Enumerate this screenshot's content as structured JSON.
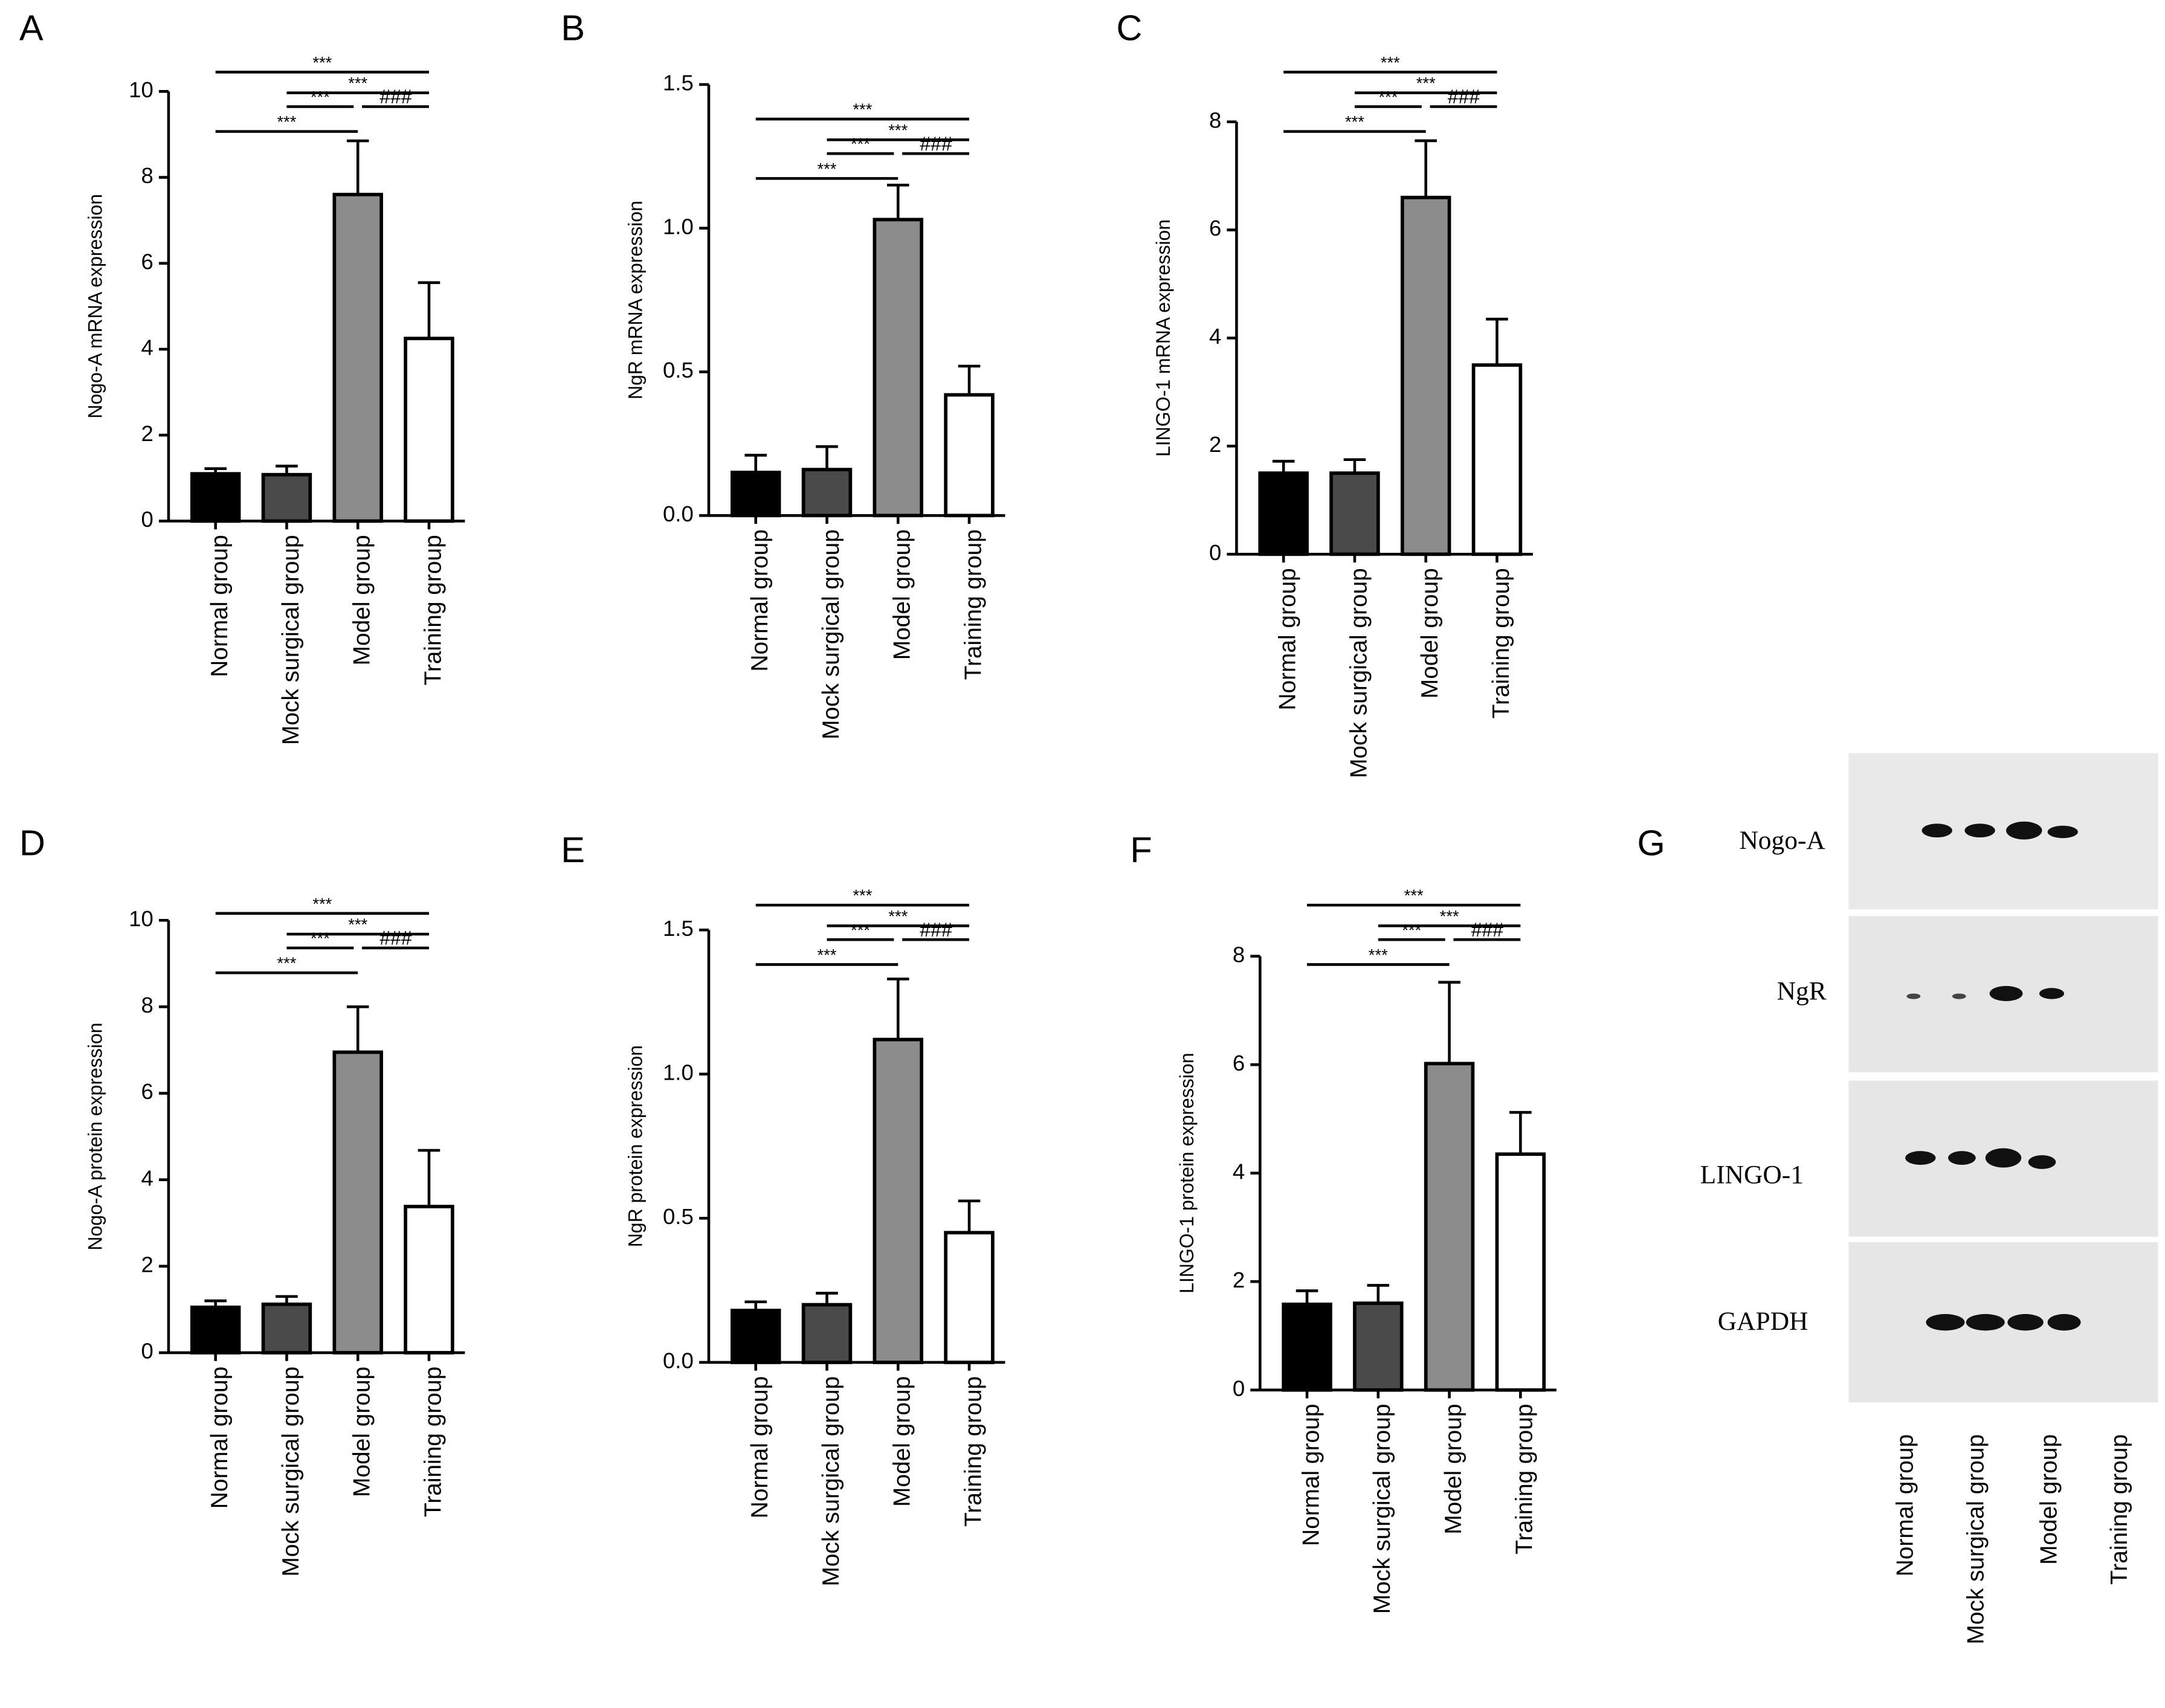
{
  "chart_data": [
    {
      "type": "bar",
      "label": "A",
      "ylabel": "Nogo-A mRNA expression",
      "categories": [
        "Normal group",
        "Mock surgical group",
        "Model group",
        "Training group"
      ],
      "values": [
        1.1,
        1.08,
        7.6,
        4.25
      ],
      "errors": [
        0.12,
        0.2,
        1.25,
        1.3
      ],
      "colors": [
        "#000000",
        "#4a4a4a",
        "#8c8c8c",
        "#ffffff"
      ],
      "ylim": [
        0,
        10
      ],
      "yticks": [
        0,
        2,
        4,
        6,
        8,
        10
      ],
      "annotations": [
        {
          "label": "***",
          "from": 0,
          "to": 3
        },
        {
          "label": "***",
          "from": 1,
          "to": 3
        },
        {
          "label": "***",
          "from": 1,
          "to": 2
        },
        {
          "label": "###",
          "from": 2,
          "to": 3
        },
        {
          "label": "***",
          "from": 0,
          "to": 2
        }
      ]
    },
    {
      "type": "bar",
      "label": "B",
      "ylabel": "NgR mRNA expression",
      "categories": [
        "Normal group",
        "Mock surgical group",
        "Model group",
        "Training group"
      ],
      "values": [
        0.15,
        0.16,
        1.03,
        0.42
      ],
      "errors": [
        0.06,
        0.08,
        0.12,
        0.1
      ],
      "colors": [
        "#000000",
        "#4a4a4a",
        "#8c8c8c",
        "#ffffff"
      ],
      "ylim": [
        0,
        1.5
      ],
      "yticks": [
        {
          "value": 0,
          "label": "0.0"
        },
        {
          "value": 0.5,
          "label": "0.5"
        },
        {
          "value": 1,
          "label": "1.0"
        },
        {
          "value": 1.5,
          "label": "1.5"
        }
      ],
      "annotations": [
        {
          "label": "***",
          "from": 0,
          "to": 3
        },
        {
          "label": "***",
          "from": 1,
          "to": 3
        },
        {
          "label": "***",
          "from": 1,
          "to": 2
        },
        {
          "label": "###",
          "from": 2,
          "to": 3
        },
        {
          "label": "***",
          "from": 0,
          "to": 2
        }
      ]
    },
    {
      "type": "bar",
      "label": "C",
      "ylabel": "LINGO-1 mRNA expression",
      "categories": [
        "Normal group",
        "Mock surgical group",
        "Model group",
        "Training group"
      ],
      "values": [
        1.5,
        1.5,
        6.6,
        3.5
      ],
      "errors": [
        0.22,
        0.25,
        1.05,
        0.85
      ],
      "colors": [
        "#000000",
        "#4a4a4a",
        "#8c8c8c",
        "#ffffff"
      ],
      "ylim": [
        0,
        8
      ],
      "yticks": [
        0,
        2,
        4,
        6,
        8
      ],
      "annotations": [
        {
          "label": "***",
          "from": 0,
          "to": 3
        },
        {
          "label": "***",
          "from": 1,
          "to": 3
        },
        {
          "label": "***",
          "from": 1,
          "to": 2
        },
        {
          "label": "###",
          "from": 2,
          "to": 3
        },
        {
          "label": "***",
          "from": 0,
          "to": 2
        }
      ]
    },
    {
      "type": "bar",
      "label": "D",
      "ylabel": "Nogo-A protein expression",
      "categories": [
        "Normal group",
        "Mock surgical group",
        "Model group",
        "Training group"
      ],
      "values": [
        1.05,
        1.12,
        6.95,
        3.38
      ],
      "errors": [
        0.15,
        0.18,
        1.05,
        1.3
      ],
      "colors": [
        "#000000",
        "#4a4a4a",
        "#8c8c8c",
        "#ffffff"
      ],
      "ylim": [
        0,
        10
      ],
      "yticks": [
        0,
        2,
        4,
        6,
        8,
        10
      ],
      "annotations": [
        {
          "label": "***",
          "from": 0,
          "to": 3
        },
        {
          "label": "***",
          "from": 1,
          "to": 3
        },
        {
          "label": "***",
          "from": 1,
          "to": 2
        },
        {
          "label": "###",
          "from": 2,
          "to": 3
        },
        {
          "label": "***",
          "from": 0,
          "to": 2
        }
      ]
    },
    {
      "type": "bar",
      "label": "E",
      "ylabel": "NgR protein expression",
      "categories": [
        "Normal group",
        "Mock surgical group",
        "Model group",
        "Training group"
      ],
      "values": [
        0.18,
        0.2,
        1.12,
        0.45
      ],
      "errors": [
        0.03,
        0.04,
        0.21,
        0.11
      ],
      "colors": [
        "#000000",
        "#4a4a4a",
        "#8c8c8c",
        "#ffffff"
      ],
      "ylim": [
        0,
        1.5
      ],
      "yticks": [
        {
          "value": 0,
          "label": "0.0"
        },
        {
          "value": 0.5,
          "label": "0.5"
        },
        {
          "value": 1,
          "label": "1.0"
        },
        {
          "value": 1.5,
          "label": "1.5"
        }
      ],
      "annotations": [
        {
          "label": "***",
          "from": 0,
          "to": 3
        },
        {
          "label": "***",
          "from": 1,
          "to": 3
        },
        {
          "label": "***",
          "from": 1,
          "to": 2
        },
        {
          "label": "###",
          "from": 2,
          "to": 3
        },
        {
          "label": "***",
          "from": 0,
          "to": 2
        }
      ]
    },
    {
      "type": "bar",
      "label": "F",
      "ylabel": "LINGO-1 protein expression",
      "categories": [
        "Normal group",
        "Mock surgical group",
        "Model group",
        "Training group"
      ],
      "values": [
        1.58,
        1.6,
        6.02,
        4.35
      ],
      "errors": [
        0.25,
        0.33,
        1.5,
        0.77
      ],
      "colors": [
        "#000000",
        "#4a4a4a",
        "#8c8c8c",
        "#ffffff"
      ],
      "ylim": [
        0,
        8
      ],
      "yticks": [
        0,
        2,
        4,
        6,
        8
      ],
      "annotations": [
        {
          "label": "***",
          "from": 0,
          "to": 3
        },
        {
          "label": "***",
          "from": 1,
          "to": 3
        },
        {
          "label": "***",
          "from": 1,
          "to": 2
        },
        {
          "label": "###",
          "from": 2,
          "to": 3
        },
        {
          "label": "***",
          "from": 0,
          "to": 2
        }
      ]
    }
  ],
  "blot": {
    "label": "G",
    "rows": [
      "Nogo-A",
      "NgR",
      "LINGO-1",
      "GAPDH"
    ],
    "categories": [
      "Normal group",
      "Mock surgical group",
      "Model group",
      "Training group"
    ]
  }
}
